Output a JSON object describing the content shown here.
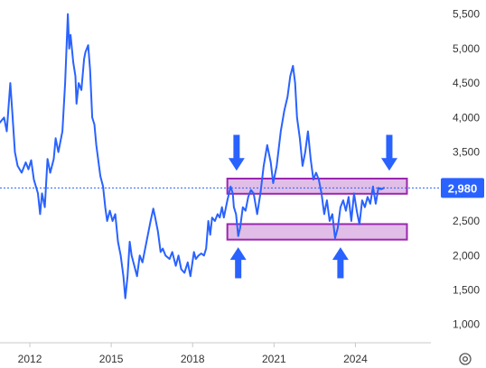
{
  "chart_data": {
    "type": "line",
    "title": "",
    "xlabel": "",
    "ylabel": "",
    "xlim": [
      2010.9,
      2026.55
    ],
    "ylim": [
      800,
      5600
    ],
    "x_ticks": [
      {
        "value": 2012,
        "label": "2012"
      },
      {
        "value": 2015,
        "label": "2015"
      },
      {
        "value": 2018,
        "label": "2018"
      },
      {
        "value": 2021,
        "label": "2021"
      },
      {
        "value": 2024,
        "label": "2024"
      }
    ],
    "y_ticks": [
      {
        "value": 5500,
        "label": "5,500"
      },
      {
        "value": 5000,
        "label": "5,000"
      },
      {
        "value": 4500,
        "label": "4,500"
      },
      {
        "value": 4000,
        "label": "4,000"
      },
      {
        "value": 3500,
        "label": "3,500"
      },
      {
        "value": 3000,
        "label": "3,000"
      },
      {
        "value": 2500,
        "label": "2,500"
      },
      {
        "value": 2000,
        "label": "2,000"
      },
      {
        "value": 1500,
        "label": "1,500"
      },
      {
        "value": 1000,
        "label": "1,000"
      }
    ],
    "grid": false,
    "series": [
      {
        "color": "#2962ff",
        "points": [
          [
            2010.9,
            3930
          ],
          [
            2011.05,
            4000
          ],
          [
            2011.15,
            3800
          ],
          [
            2011.28,
            4500
          ],
          [
            2011.35,
            4100
          ],
          [
            2011.45,
            3500
          ],
          [
            2011.55,
            3300
          ],
          [
            2011.7,
            3200
          ],
          [
            2011.85,
            3350
          ],
          [
            2011.95,
            3250
          ],
          [
            2012.05,
            3380
          ],
          [
            2012.15,
            3100
          ],
          [
            2012.3,
            2900
          ],
          [
            2012.38,
            2600
          ],
          [
            2012.45,
            2900
          ],
          [
            2012.55,
            2700
          ],
          [
            2012.65,
            3400
          ],
          [
            2012.75,
            3200
          ],
          [
            2012.88,
            3400
          ],
          [
            2012.95,
            3700
          ],
          [
            2013.05,
            3500
          ],
          [
            2013.2,
            3800
          ],
          [
            2013.3,
            4500
          ],
          [
            2013.4,
            5500
          ],
          [
            2013.45,
            5000
          ],
          [
            2013.5,
            5200
          ],
          [
            2013.6,
            4800
          ],
          [
            2013.68,
            4600
          ],
          [
            2013.72,
            4200
          ],
          [
            2013.8,
            4500
          ],
          [
            2013.9,
            4400
          ],
          [
            2014.0,
            4850
          ],
          [
            2014.05,
            4950
          ],
          [
            2014.15,
            5050
          ],
          [
            2014.22,
            4700
          ],
          [
            2014.3,
            4000
          ],
          [
            2014.38,
            3900
          ],
          [
            2014.45,
            3600
          ],
          [
            2014.55,
            3300
          ],
          [
            2014.6,
            3150
          ],
          [
            2014.7,
            3000
          ],
          [
            2014.78,
            2700
          ],
          [
            2014.85,
            2500
          ],
          [
            2014.95,
            2650
          ],
          [
            2015.05,
            2500
          ],
          [
            2015.15,
            2600
          ],
          [
            2015.25,
            2200
          ],
          [
            2015.35,
            2000
          ],
          [
            2015.45,
            1700
          ],
          [
            2015.52,
            1380
          ],
          [
            2015.6,
            1700
          ],
          [
            2015.68,
            2200
          ],
          [
            2015.75,
            2000
          ],
          [
            2015.85,
            1850
          ],
          [
            2015.95,
            1700
          ],
          [
            2016.05,
            2000
          ],
          [
            2016.15,
            1900
          ],
          [
            2016.25,
            2100
          ],
          [
            2016.35,
            2300
          ],
          [
            2016.45,
            2500
          ],
          [
            2016.55,
            2680
          ],
          [
            2016.62,
            2550
          ],
          [
            2016.72,
            2350
          ],
          [
            2016.82,
            2050
          ],
          [
            2016.9,
            2100
          ],
          [
            2017.0,
            2000
          ],
          [
            2017.15,
            1950
          ],
          [
            2017.25,
            2050
          ],
          [
            2017.38,
            1850
          ],
          [
            2017.48,
            2000
          ],
          [
            2017.58,
            1800
          ],
          [
            2017.7,
            1750
          ],
          [
            2017.82,
            1900
          ],
          [
            2017.92,
            1700
          ],
          [
            2018.05,
            2050
          ],
          [
            2018.12,
            1950
          ],
          [
            2018.22,
            2000
          ],
          [
            2018.32,
            2030
          ],
          [
            2018.42,
            2000
          ],
          [
            2018.5,
            2100
          ],
          [
            2018.58,
            2500
          ],
          [
            2018.65,
            2300
          ],
          [
            2018.72,
            2550
          ],
          [
            2018.82,
            2500
          ],
          [
            2018.92,
            2600
          ],
          [
            2019.0,
            2550
          ],
          [
            2019.08,
            2700
          ],
          [
            2019.15,
            2550
          ],
          [
            2019.28,
            2800
          ],
          [
            2019.4,
            3000
          ],
          [
            2019.48,
            2900
          ],
          [
            2019.52,
            2700
          ],
          [
            2019.6,
            2600
          ],
          [
            2019.68,
            2280
          ],
          [
            2019.75,
            2400
          ],
          [
            2019.85,
            2700
          ],
          [
            2019.95,
            2650
          ],
          [
            2020.05,
            2850
          ],
          [
            2020.15,
            2950
          ],
          [
            2020.25,
            2900
          ],
          [
            2020.38,
            2600
          ],
          [
            2020.5,
            2900
          ],
          [
            2020.62,
            3300
          ],
          [
            2020.75,
            3600
          ],
          [
            2020.88,
            3350
          ],
          [
            2020.97,
            3050
          ],
          [
            2021.1,
            3300
          ],
          [
            2021.25,
            3800
          ],
          [
            2021.38,
            4100
          ],
          [
            2021.5,
            4300
          ],
          [
            2021.6,
            4600
          ],
          [
            2021.7,
            4750
          ],
          [
            2021.78,
            4500
          ],
          [
            2021.85,
            4000
          ],
          [
            2021.95,
            3700
          ],
          [
            2022.05,
            3300
          ],
          [
            2022.15,
            3500
          ],
          [
            2022.25,
            3800
          ],
          [
            2022.35,
            3400
          ],
          [
            2022.45,
            3100
          ],
          [
            2022.55,
            3200
          ],
          [
            2022.65,
            3100
          ],
          [
            2022.75,
            2900
          ],
          [
            2022.85,
            2600
          ],
          [
            2022.95,
            2800
          ],
          [
            2023.05,
            2500
          ],
          [
            2023.15,
            2600
          ],
          [
            2023.25,
            2250
          ],
          [
            2023.35,
            2400
          ],
          [
            2023.45,
            2700
          ],
          [
            2023.55,
            2800
          ],
          [
            2023.65,
            2650
          ],
          [
            2023.75,
            2850
          ],
          [
            2023.85,
            2500
          ],
          [
            2023.95,
            2900
          ],
          [
            2024.05,
            2650
          ],
          [
            2024.15,
            2450
          ],
          [
            2024.25,
            2800
          ],
          [
            2024.35,
            2700
          ],
          [
            2024.45,
            2850
          ],
          [
            2024.55,
            2750
          ],
          [
            2024.65,
            3000
          ],
          [
            2024.75,
            2750
          ],
          [
            2024.85,
            2980
          ],
          [
            2024.95,
            2960
          ],
          [
            2025.05,
            2980
          ]
        ]
      }
    ],
    "current_price": {
      "value": 2980,
      "label": "2,980",
      "color": "#2962ff"
    },
    "zones": [
      {
        "name": "resistance-zone",
        "x_start": 2019.28,
        "x_end": 2025.9,
        "y_low": 2895,
        "y_high": 3115,
        "color": "#e1bee7",
        "border": "#9c27b0"
      },
      {
        "name": "support-zone",
        "x_start": 2019.28,
        "x_end": 2025.9,
        "y_low": 2230,
        "y_high": 2455,
        "color": "#e1bee7",
        "border": "#9c27b0"
      }
    ],
    "arrows": [
      {
        "name": "down-arrow-left",
        "direction": "down",
        "x": 2019.62,
        "y_top": 3750,
        "y_tip": 3230
      },
      {
        "name": "down-arrow-right",
        "direction": "down",
        "x": 2025.25,
        "y_top": 3750,
        "y_tip": 3230
      },
      {
        "name": "up-arrow-left",
        "direction": "up",
        "x": 2019.68,
        "y_top": 2120,
        "y_tip": 1670
      },
      {
        "name": "up-arrow-right",
        "direction": "up",
        "x": 2023.45,
        "y_top": 2120,
        "y_tip": 1670
      }
    ],
    "colors": {
      "line": "#2962ff",
      "zone_fill": "#e1bee7",
      "zone_border": "#9c27b0",
      "arrow": "#2962ff",
      "price_badge": "#2962ff"
    },
    "corner_icon": "settings-gear-icon"
  }
}
